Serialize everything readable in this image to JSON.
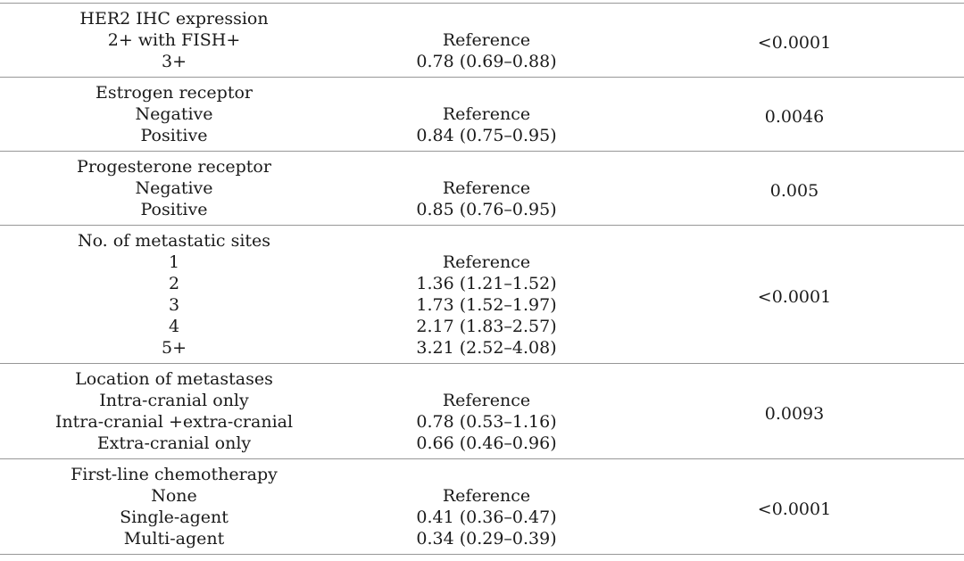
{
  "table": {
    "description": "multivariable analysis table with hazard ratios and p-values",
    "columns": [
      "variable",
      "hazard_ratio_ci",
      "p_value"
    ],
    "sections": [
      {
        "header": "HER2 IHC expression",
        "p_value": "<0.0001",
        "rows": [
          {
            "label": "2+ with FISH+",
            "value": "Reference"
          },
          {
            "label": "3+",
            "value": "0.78 (0.69–0.88)"
          }
        ]
      },
      {
        "header": "Estrogen receptor",
        "p_value": "0.0046",
        "rows": [
          {
            "label": "Negative",
            "value": "Reference"
          },
          {
            "label": "Positive",
            "value": "0.84 (0.75–0.95)"
          }
        ]
      },
      {
        "header": "Progesterone receptor",
        "p_value": "0.005",
        "rows": [
          {
            "label": "Negative",
            "value": "Reference"
          },
          {
            "label": "Positive",
            "value": "0.85 (0.76–0.95)"
          }
        ]
      },
      {
        "header": "No. of metastatic sites",
        "p_value": "<0.0001",
        "rows": [
          {
            "label": "1",
            "value": "Reference"
          },
          {
            "label": "2",
            "value": "1.36 (1.21–1.52)"
          },
          {
            "label": "3",
            "value": "1.73 (1.52–1.97)"
          },
          {
            "label": "4",
            "value": "2.17 (1.83–2.57)"
          },
          {
            "label": "5+",
            "value": "3.21 (2.52–4.08)"
          }
        ]
      },
      {
        "header": "Location of metastases",
        "p_value": "0.0093",
        "rows": [
          {
            "label": "Intra-cranial only",
            "value": "Reference"
          },
          {
            "label": "Intra-cranial +extra-cranial",
            "value": "0.78 (0.53–1.16)"
          },
          {
            "label": "Extra-cranial only",
            "value": "0.66 (0.46–0.96)"
          }
        ]
      },
      {
        "header": "First-line chemotherapy",
        "p_value": "<0.0001",
        "rows": [
          {
            "label": "None",
            "value": "Reference"
          },
          {
            "label": "Single-agent",
            "value": "0.41 (0.36–0.47)"
          },
          {
            "label": "Multi-agent",
            "value": "0.34 (0.29–0.39)"
          }
        ]
      }
    ]
  },
  "colors": {
    "text": "#1a1a1a",
    "rule": "#979797",
    "background": "#ffffff"
  }
}
